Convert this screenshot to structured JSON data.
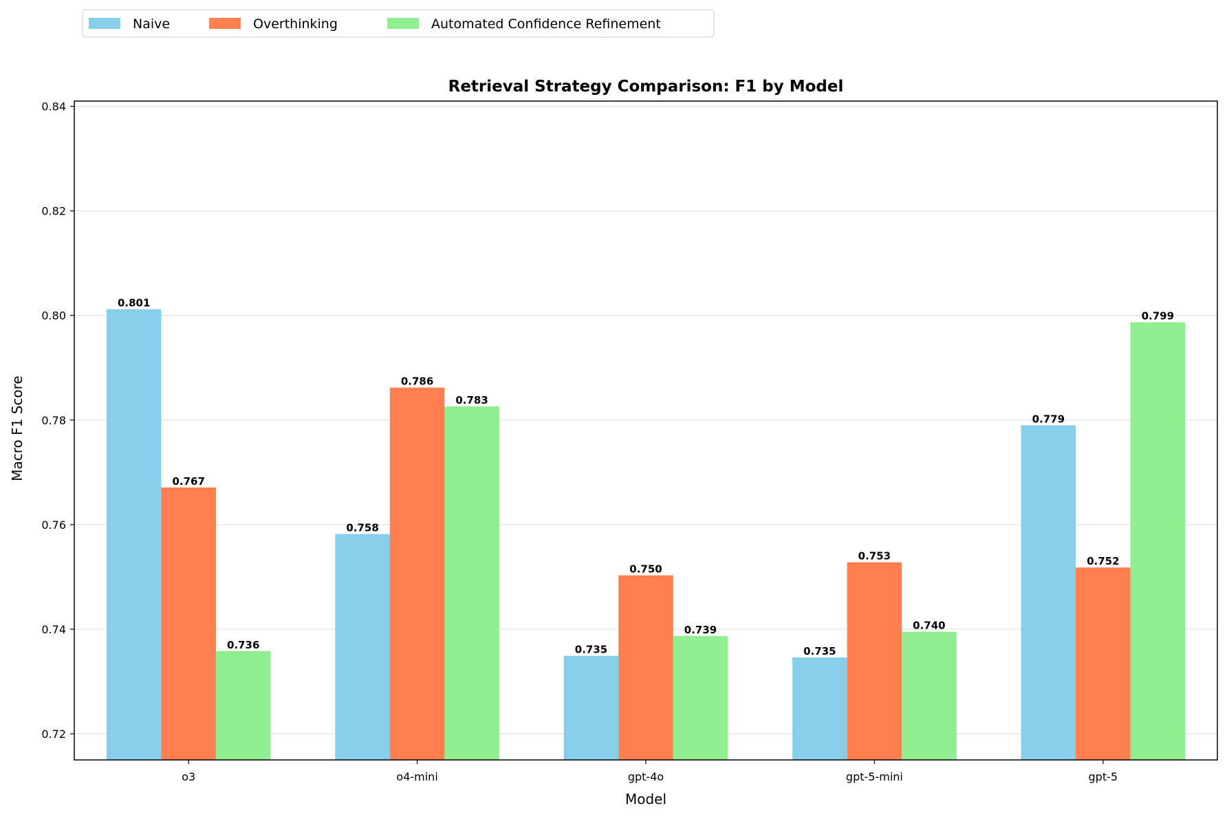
{
  "chart_data": {
    "type": "bar",
    "title": "Retrieval Strategy Comparison: F1 by Model",
    "xlabel": "Model",
    "ylabel": "Macro F1 Score",
    "categories": [
      "o3",
      "o4-mini",
      "gpt-4o",
      "gpt-5-mini",
      "gpt-5"
    ],
    "ylim": [
      0.715,
      0.841
    ],
    "yticks": [
      0.72,
      0.74,
      0.76,
      0.78,
      0.8,
      0.82,
      0.84
    ],
    "ytick_labels": [
      "0.72",
      "0.74",
      "0.76",
      "0.78",
      "0.80",
      "0.82",
      "0.84"
    ],
    "grid": "horizontal",
    "legend_placement": "top-left, above plot",
    "series": [
      {
        "name": "Naive",
        "color": "#87CEEB",
        "values": [
          0.8012,
          0.7582,
          0.7349,
          0.7346,
          0.779
        ],
        "labels": [
          "0.801",
          "0.758",
          "0.735",
          "0.735",
          "0.779"
        ]
      },
      {
        "name": "Overthinking",
        "color": "#FF7F50",
        "values": [
          0.7671,
          0.7862,
          0.7503,
          0.7528,
          0.7518
        ],
        "labels": [
          "0.767",
          "0.786",
          "0.750",
          "0.753",
          "0.752"
        ]
      },
      {
        "name": "Automated Confidence Refinement",
        "color": "#90EE90",
        "values": [
          0.7358,
          0.7826,
          0.7387,
          0.7395,
          0.7987
        ],
        "labels": [
          "0.736",
          "0.783",
          "0.739",
          "0.740",
          "0.799"
        ]
      }
    ]
  }
}
